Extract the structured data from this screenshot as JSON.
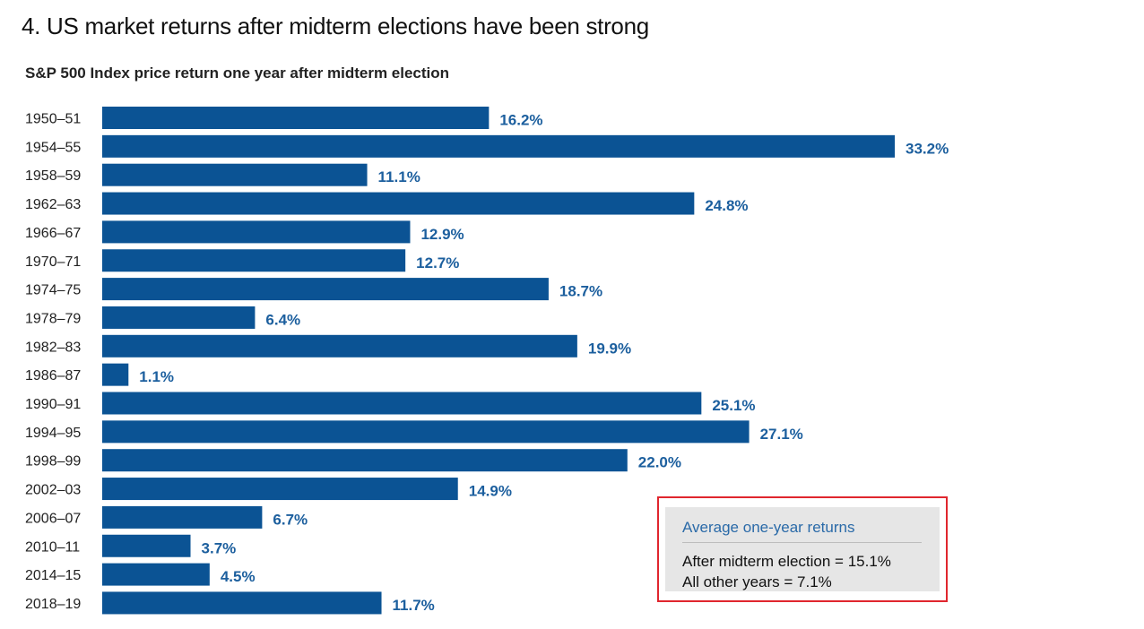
{
  "title": "4. US market returns after midterm elections have been strong",
  "chart_data": {
    "type": "bar",
    "orientation": "horizontal",
    "title": "4. US market returns after midterm elections have been strong",
    "subtitle": "S&P 500 Index price return one year after midterm election",
    "xlabel": "",
    "ylabel": "",
    "xlim": [
      0,
      33.2
    ],
    "grid": false,
    "categories": [
      "1950–51",
      "1954–55",
      "1958–59",
      "1962–63",
      "1966–67",
      "1970–71",
      "1974–75",
      "1978–79",
      "1982–83",
      "1986–87",
      "1990–91",
      "1994–95",
      "1998–99",
      "2002–03",
      "2006–07",
      "2010–11",
      "2014–15",
      "2018–19"
    ],
    "values": [
      16.2,
      33.2,
      11.1,
      24.8,
      12.9,
      12.7,
      18.7,
      6.4,
      19.9,
      1.1,
      25.1,
      27.1,
      22.0,
      14.9,
      6.7,
      3.7,
      4.5,
      11.7
    ],
    "value_labels": [
      "16.2%",
      "33.2%",
      "11.1%",
      "24.8%",
      "12.9%",
      "12.7%",
      "18.7%",
      "6.4%",
      "19.9%",
      "1.1%",
      "25.1%",
      "27.1%",
      "22.0%",
      "14.9%",
      "6.7%",
      "3.7%",
      "4.5%",
      "11.7%"
    ]
  },
  "callout": {
    "title": "Average one-year returns",
    "line1": "After midterm election = 15.1%",
    "line2": "All other years = 7.1%"
  },
  "colors": {
    "bar": "#0b5394",
    "value_label": "#1c5f9e",
    "callout_title": "#2a6aa8",
    "callout_border": "#e0262e"
  }
}
